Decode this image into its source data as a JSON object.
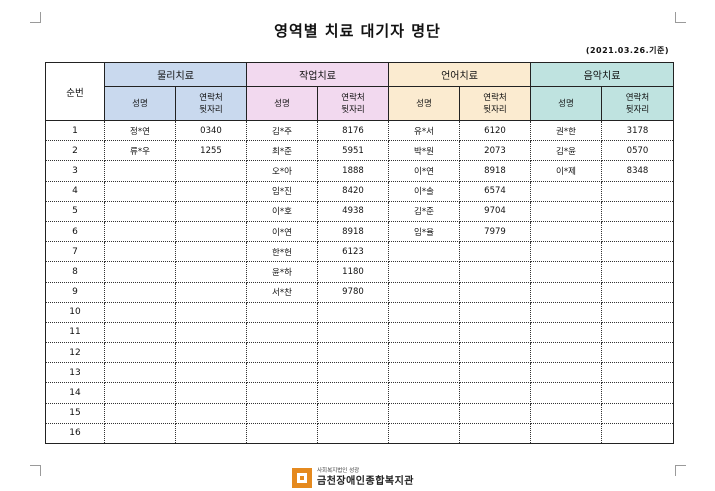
{
  "title": "영역별 치료 대기자 명단",
  "date_note": "(2021.03.26.기준)",
  "headers": {
    "seq": "순번",
    "groups": [
      "물리치료",
      "작업치료",
      "언어치료",
      "음악치료"
    ],
    "name": "성명",
    "contact_line1": "연락처",
    "contact_line2": "뒷자리"
  },
  "rows": [
    {
      "seq": "1",
      "c": [
        [
          "정*연",
          "0340"
        ],
        [
          "김*주",
          "8176"
        ],
        [
          "유*서",
          "6120"
        ],
        [
          "권*한",
          "3178"
        ]
      ]
    },
    {
      "seq": "2",
      "c": [
        [
          "류*우",
          "1255"
        ],
        [
          "최*준",
          "5951"
        ],
        [
          "박*원",
          "2073"
        ],
        [
          "김*윤",
          "0570"
        ]
      ]
    },
    {
      "seq": "3",
      "c": [
        [
          "",
          ""
        ],
        [
          "오*아",
          "1888"
        ],
        [
          "이*연",
          "8918"
        ],
        [
          "이*제",
          "8348"
        ]
      ]
    },
    {
      "seq": "4",
      "c": [
        [
          "",
          ""
        ],
        [
          "임*진",
          "8420"
        ],
        [
          "이*솔",
          "6574"
        ],
        [
          "",
          ""
        ]
      ]
    },
    {
      "seq": "5",
      "c": [
        [
          "",
          ""
        ],
        [
          "이*호",
          "4938"
        ],
        [
          "김*준",
          "9704"
        ],
        [
          "",
          ""
        ]
      ]
    },
    {
      "seq": "6",
      "c": [
        [
          "",
          ""
        ],
        [
          "이*연",
          "8918"
        ],
        [
          "임*율",
          "7979"
        ],
        [
          "",
          ""
        ]
      ]
    },
    {
      "seq": "7",
      "c": [
        [
          "",
          ""
        ],
        [
          "한*헌",
          "6123"
        ],
        [
          "",
          ""
        ],
        [
          "",
          ""
        ]
      ]
    },
    {
      "seq": "8",
      "c": [
        [
          "",
          ""
        ],
        [
          "윤*하",
          "1180"
        ],
        [
          "",
          ""
        ],
        [
          "",
          ""
        ]
      ]
    },
    {
      "seq": "9",
      "c": [
        [
          "",
          ""
        ],
        [
          "서*찬",
          "9780"
        ],
        [
          "",
          ""
        ],
        [
          "",
          ""
        ]
      ]
    },
    {
      "seq": "10",
      "c": [
        [
          "",
          ""
        ],
        [
          "",
          ""
        ],
        [
          "",
          ""
        ],
        [
          "",
          ""
        ]
      ]
    },
    {
      "seq": "11",
      "c": [
        [
          "",
          ""
        ],
        [
          "",
          ""
        ],
        [
          "",
          ""
        ],
        [
          "",
          ""
        ]
      ]
    },
    {
      "seq": "12",
      "c": [
        [
          "",
          ""
        ],
        [
          "",
          ""
        ],
        [
          "",
          ""
        ],
        [
          "",
          ""
        ]
      ]
    },
    {
      "seq": "13",
      "c": [
        [
          "",
          ""
        ],
        [
          "",
          ""
        ],
        [
          "",
          ""
        ],
        [
          "",
          ""
        ]
      ]
    },
    {
      "seq": "14",
      "c": [
        [
          "",
          ""
        ],
        [
          "",
          ""
        ],
        [
          "",
          ""
        ],
        [
          "",
          ""
        ]
      ]
    },
    {
      "seq": "15",
      "c": [
        [
          "",
          ""
        ],
        [
          "",
          ""
        ],
        [
          "",
          ""
        ],
        [
          "",
          ""
        ]
      ]
    },
    {
      "seq": "16",
      "c": [
        [
          "",
          ""
        ],
        [
          "",
          ""
        ],
        [
          "",
          ""
        ],
        [
          "",
          ""
        ]
      ]
    }
  ],
  "footer": {
    "org_small": "사회복지법인 성광",
    "org_name": "금천장애인종합복지관"
  }
}
